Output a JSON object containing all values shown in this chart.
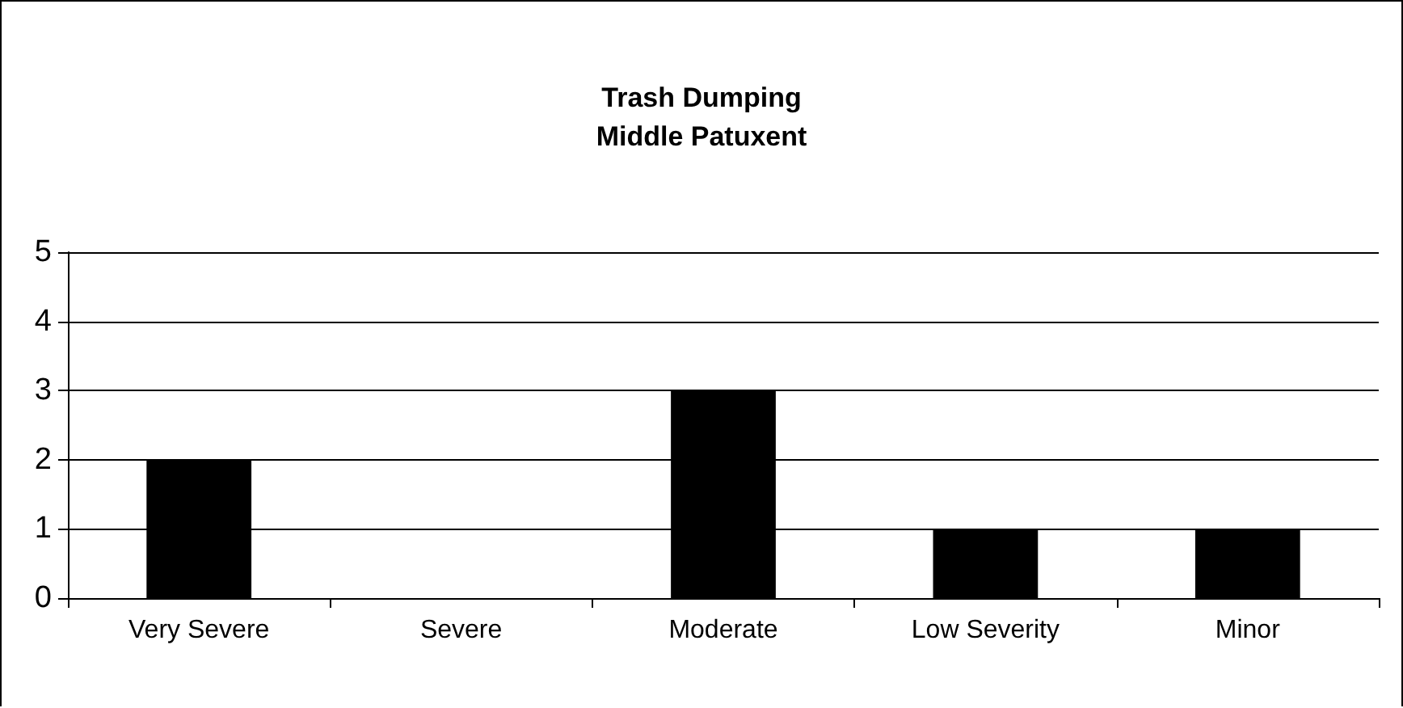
{
  "chart_data": {
    "type": "bar",
    "title": "Trash Dumping",
    "subtitle": "Middle Patuxent",
    "categories": [
      "Very Severe",
      "Severe",
      "Moderate",
      "Low Severity",
      "Minor"
    ],
    "values": [
      2,
      0,
      3,
      1,
      1
    ],
    "color": "#000000",
    "ylim": [
      0,
      5
    ],
    "yticks": [
      0,
      1,
      2,
      3,
      4,
      5
    ],
    "grid": "y"
  }
}
